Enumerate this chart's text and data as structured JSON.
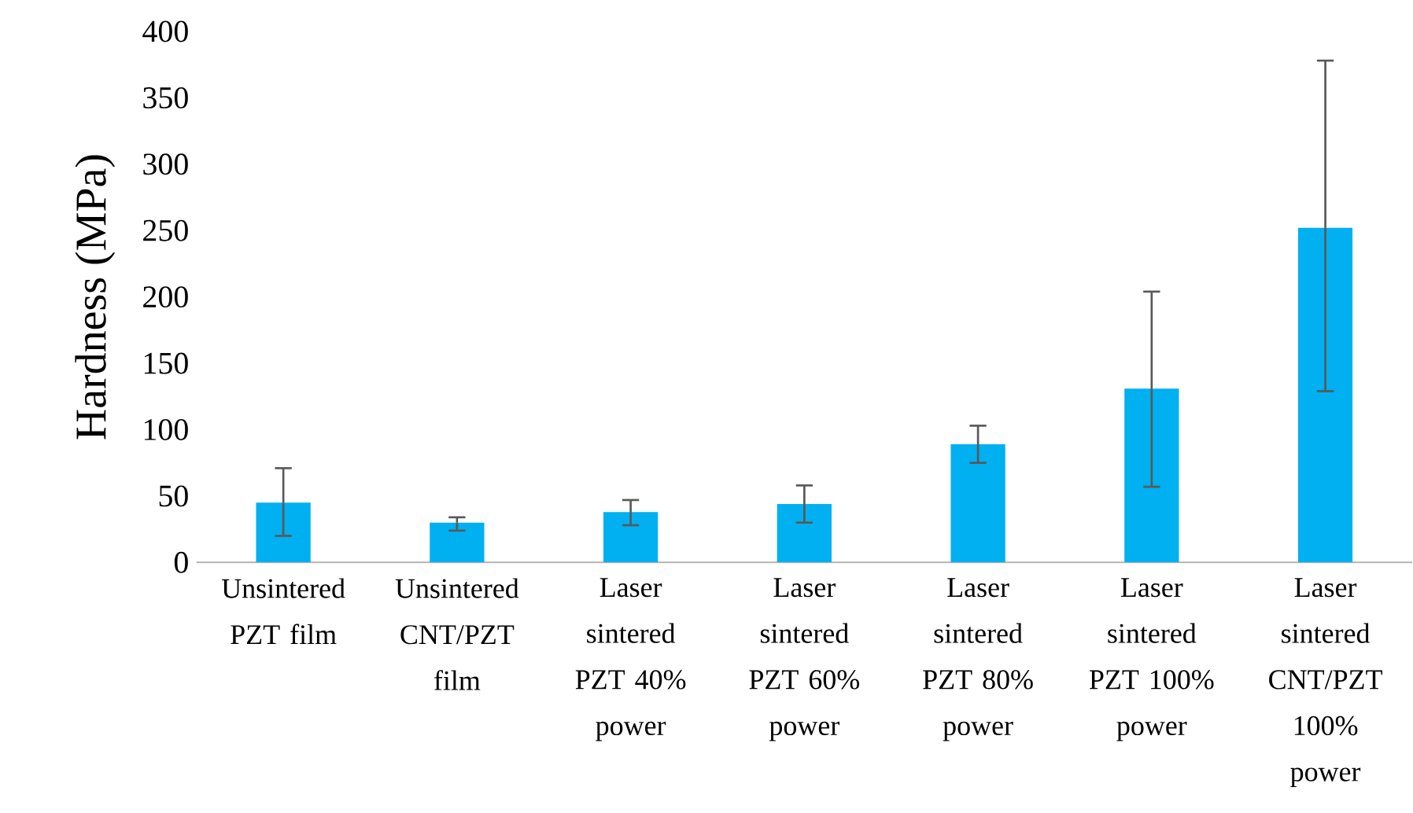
{
  "chart_data": {
    "type": "bar",
    "ylabel": "Hardness (MPa)",
    "categories": [
      "Unsintered PZT film",
      "Unsintered CNT/PZT film",
      "Laser sintered PZT 40% power",
      "Laser sintered PZT 60% power",
      "Laser sintered PZT 80% power",
      "Laser sintered PZT 100% power",
      "Laser sintered CNT/PZT 100% power"
    ],
    "values": [
      45,
      30,
      38,
      44,
      89,
      131,
      252
    ],
    "errors": [
      [
        20,
        71
      ],
      [
        24,
        34
      ],
      [
        28,
        47
      ],
      [
        30,
        58
      ],
      [
        75,
        103
      ],
      [
        57,
        204
      ],
      [
        129,
        378
      ]
    ],
    "color": "#00b0f0",
    "ylim": [
      0,
      400
    ],
    "yticks": [
      0,
      50,
      100,
      150,
      200,
      250,
      300,
      350,
      400
    ],
    "grid": false
  }
}
